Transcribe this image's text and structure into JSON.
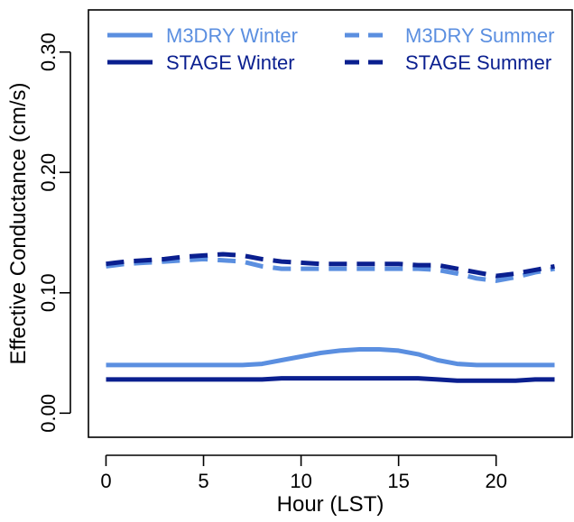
{
  "chart_data": {
    "type": "line",
    "title": "",
    "xlabel": "Hour (LST)",
    "ylabel": "Effective Conductance (cm/s)",
    "xlim": [
      -0.9,
      23.9
    ],
    "ylim": [
      -0.02,
      0.335
    ],
    "xticks": [
      0,
      5,
      10,
      15,
      20
    ],
    "yticks": [
      0.0,
      0.1,
      0.2,
      0.3
    ],
    "ytick_labels": [
      "0.00",
      "0.10",
      "0.20",
      "0.30"
    ],
    "grid": false,
    "legend_position": "top",
    "x": [
      0,
      1,
      2,
      3,
      4,
      5,
      6,
      7,
      8,
      9,
      10,
      11,
      12,
      13,
      14,
      15,
      16,
      17,
      18,
      19,
      20,
      21,
      22,
      23
    ],
    "series": [
      {
        "name": "M3DRY Winter",
        "color": "#5b8fe0",
        "dash": "solid",
        "values": [
          0.04,
          0.04,
          0.04,
          0.04,
          0.04,
          0.04,
          0.04,
          0.04,
          0.041,
          0.044,
          0.047,
          0.05,
          0.052,
          0.053,
          0.053,
          0.052,
          0.049,
          0.044,
          0.041,
          0.04,
          0.04,
          0.04,
          0.04,
          0.04
        ]
      },
      {
        "name": "STAGE Winter",
        "color": "#0a1f8f",
        "dash": "solid",
        "values": [
          0.028,
          0.028,
          0.028,
          0.028,
          0.028,
          0.028,
          0.028,
          0.028,
          0.028,
          0.029,
          0.029,
          0.029,
          0.029,
          0.029,
          0.029,
          0.029,
          0.029,
          0.028,
          0.027,
          0.027,
          0.027,
          0.027,
          0.028,
          0.028
        ]
      },
      {
        "name": "M3DRY Summer",
        "color": "#5b8fe0",
        "dash": "dashed",
        "values": [
          0.122,
          0.124,
          0.125,
          0.126,
          0.127,
          0.128,
          0.127,
          0.126,
          0.122,
          0.12,
          0.12,
          0.12,
          0.12,
          0.12,
          0.12,
          0.12,
          0.12,
          0.119,
          0.116,
          0.112,
          0.11,
          0.113,
          0.117,
          0.12
        ]
      },
      {
        "name": "STAGE Summer",
        "color": "#0a1f8f",
        "dash": "dashed",
        "values": [
          0.124,
          0.126,
          0.127,
          0.128,
          0.13,
          0.131,
          0.132,
          0.131,
          0.128,
          0.126,
          0.125,
          0.124,
          0.124,
          0.124,
          0.124,
          0.124,
          0.123,
          0.123,
          0.12,
          0.117,
          0.114,
          0.116,
          0.119,
          0.122
        ]
      }
    ]
  }
}
